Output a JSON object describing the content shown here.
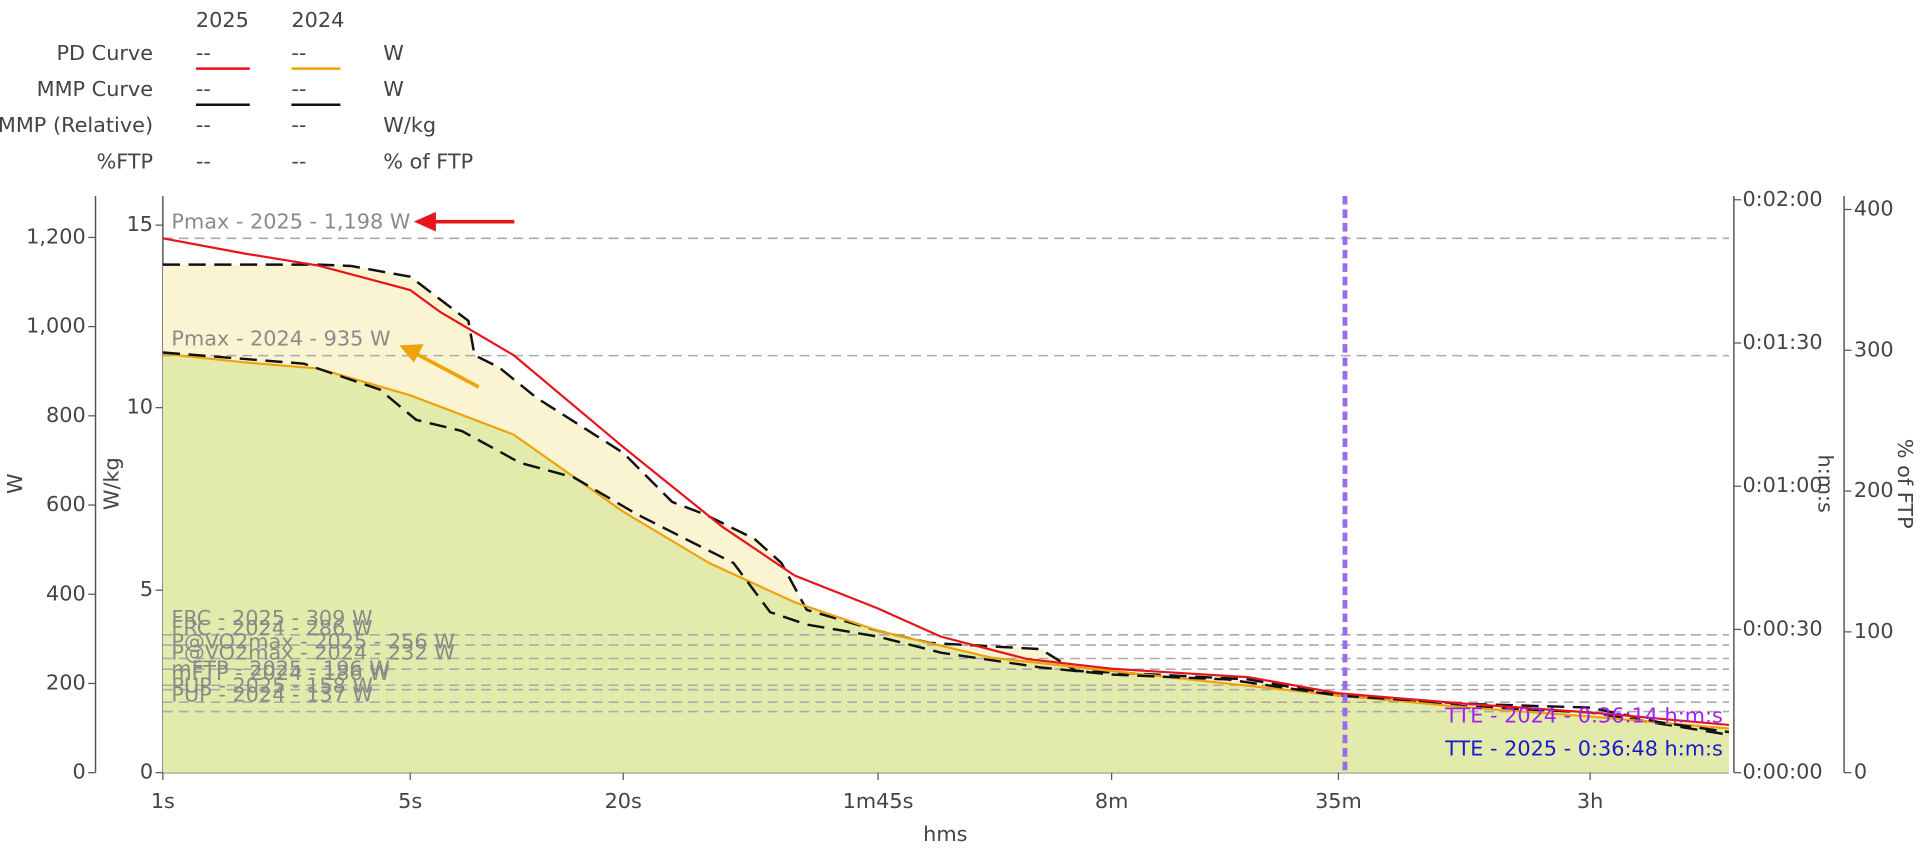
{
  "legend_table": {
    "columns": [
      "2025",
      "2024"
    ],
    "rows": [
      {
        "label": "PD Curve",
        "values": [
          "--",
          "--"
        ],
        "unit": "W"
      },
      {
        "label": "MMP Curve",
        "values": [
          "--",
          "--"
        ],
        "unit": "W"
      },
      {
        "label": "MMP (Relative)",
        "values": [
          "--",
          "--"
        ],
        "unit": "W/kg"
      },
      {
        "label": "%FTP",
        "values": [
          "--",
          "--"
        ],
        "unit": "% of FTP"
      }
    ]
  },
  "chart_data": {
    "type": "line",
    "x_label": "hms",
    "y_label": "W",
    "y2_label": "W/kg",
    "y3_label": "h:m:s",
    "y4_label": "% of FTP",
    "xscale": "log",
    "xlim": [
      1,
      26660
    ],
    "xticks": [
      {
        "value": 1,
        "label": "1s"
      },
      {
        "value": 5,
        "label": "5s"
      },
      {
        "value": 20,
        "label": "20s"
      },
      {
        "value": 105,
        "label": "1m45s"
      },
      {
        "value": 480,
        "label": "8m"
      },
      {
        "value": 2100,
        "label": "35m"
      },
      {
        "value": 10800,
        "label": "3h"
      }
    ],
    "ylim": [
      0,
      1293
    ],
    "yticks": [
      0,
      200,
      400,
      600,
      800,
      {
        "value": 1000,
        "label": "1,000"
      },
      {
        "value": 1200,
        "label": "1,200"
      }
    ],
    "y2lim": [
      0,
      15.8
    ],
    "y2ticks": [
      0,
      5,
      10,
      15
    ],
    "y3lim": [
      0,
      120.8
    ],
    "y3ticks": [
      {
        "value": 0,
        "label": "0:00:00"
      },
      {
        "value": 30,
        "label": "0:00:30"
      },
      {
        "value": 60,
        "label": "0:01:00"
      },
      {
        "value": 90,
        "label": "0:01:30"
      },
      {
        "value": 120,
        "label": "0:02:00"
      }
    ],
    "y4lim": [
      0,
      409.6
    ],
    "y4ticks": [
      0,
      100,
      200,
      300,
      400
    ],
    "series": [
      {
        "name": "MMP Curve 2025",
        "color": "#111111",
        "dash": true,
        "fill": "#fbf4d3",
        "x": [
          1,
          2.75,
          3.4,
          5,
          6.1,
          7.3,
          7.6,
          8.9,
          11.4,
          20,
          27.5,
          34,
          47,
          56,
          66,
          105,
          147,
          302,
          381,
          480,
          1170,
          2100,
          4900,
          10800,
          26660
        ],
        "values": [
          1139,
          1139,
          1136,
          1112,
          1060,
          1013,
          936,
          909,
          840,
          717,
          607,
          579,
          524,
          470,
          365,
          318,
          291,
          277,
          228,
          225,
          209,
          173,
          148,
          135,
          85
        ]
      },
      {
        "name": "PD Curve 2024",
        "color": "#f0a20a",
        "fill": "#e2ebac",
        "x": [
          1,
          1.7,
          2.75,
          5,
          9.8,
          20,
          35,
          61,
          105,
          219,
          480,
          2100,
          4900,
          10800,
          26660
        ],
        "values": [
          939,
          920,
          906,
          846,
          758,
          585,
          470,
          382,
          318,
          258,
          228,
          173,
          146,
          126,
          99
        ]
      },
      {
        "name": "MMP Curve 2024",
        "color": "#111111",
        "dash": true,
        "x": [
          1,
          2.5,
          4.1,
          5.2,
          7,
          10.2,
          14.5,
          21.9,
          30,
          41,
          52,
          66,
          105,
          158,
          302,
          480,
          1020,
          2100,
          4900,
          10800,
          17000,
          26660
        ],
        "values": [
          942,
          917,
          859,
          791,
          766,
          695,
          662,
          579,
          524,
          470,
          360,
          332,
          305,
          269,
          236,
          220,
          209,
          173,
          154,
          146,
          113,
          91
        ]
      },
      {
        "name": "PD Curve 2025",
        "color": "#e8141c",
        "x": [
          1,
          1.7,
          2.75,
          5,
          6.1,
          9.8,
          20,
          38,
          61,
          105,
          158,
          276,
          480,
          1170,
          2100,
          4900,
          10800,
          26660
        ],
        "values": [
          1198,
          1164,
          1137,
          1082,
          1032,
          936,
          730,
          552,
          442,
          368,
          305,
          255,
          233,
          214,
          178,
          154,
          135,
          107
        ]
      }
    ],
    "reference_lines": [
      {
        "label": "Pmax - 2025 - 1,198 W",
        "value": 1198
      },
      {
        "label": "Pmax - 2024 - 935 W",
        "value": 935
      },
      {
        "label": "FRC - 2025 - 309 W",
        "value": 309
      },
      {
        "label": "FRC - 2024 - 286 W",
        "value": 286
      },
      {
        "label": "P@VO2max - 2025 - 256 W",
        "value": 256
      },
      {
        "label": "P@VO2max - 2024 - 232 W",
        "value": 232
      },
      {
        "label": "mFTP - 2025 - 196 W",
        "value": 196
      },
      {
        "label": "mFTP - 2024 - 186 W",
        "value": 186
      },
      {
        "label": "PUP - 2025 - 158 W",
        "value": 158
      },
      {
        "label": "PUP - 2024 - 137 W",
        "value": 137
      }
    ],
    "tte_lines": [
      {
        "label": "TTE - 2024 - 0:36:14 h:m:s",
        "value": 2174,
        "color": "#a020f0"
      },
      {
        "label": "TTE - 2025 - 0:36:48 h:m:s",
        "value": 2208,
        "color": "#1a1acd"
      }
    ]
  }
}
